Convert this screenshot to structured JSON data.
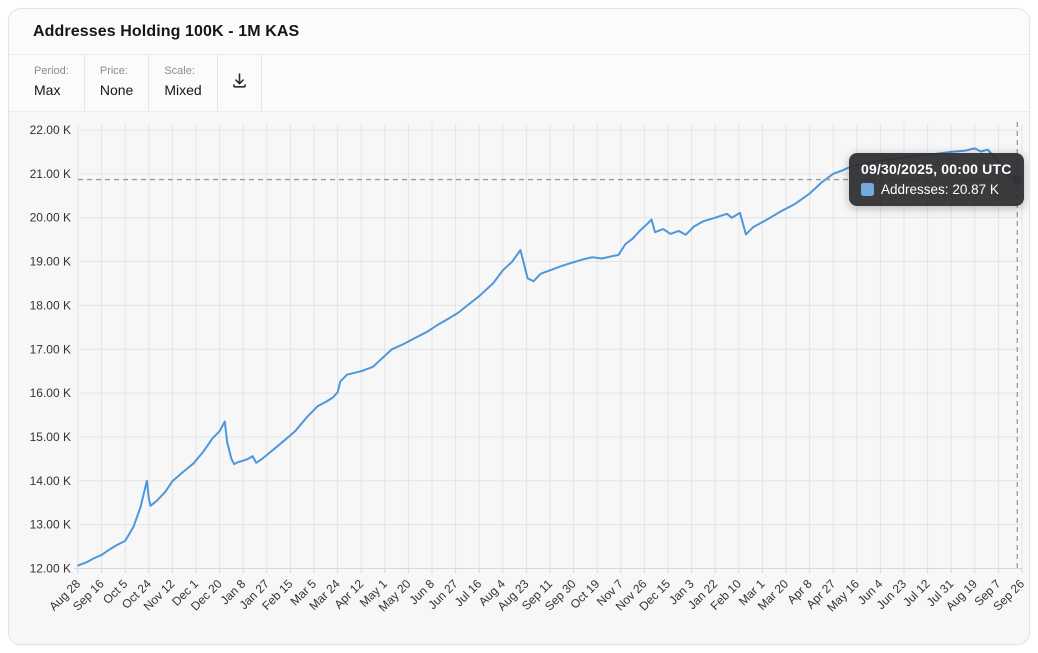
{
  "card": {
    "title": "Addresses Holding 100K - 1M KAS"
  },
  "toolbar": {
    "controls": [
      {
        "label": "Period:",
        "value": "Max"
      },
      {
        "label": "Price:",
        "value": "None"
      },
      {
        "label": "Scale:",
        "value": "Mixed"
      }
    ],
    "download_icon": "download-icon"
  },
  "tooltip": {
    "timestamp": "09/30/2025, 00:00 UTC",
    "series_label": "Addresses:",
    "series_value": "20.87 K",
    "swatch_color": "#73aadf"
  },
  "colors": {
    "line": "#4e97d9",
    "marker": "#3b8de0",
    "crosshair": "#9a9a9e",
    "grid": "#e4e4e7",
    "axis": "#d7d7da",
    "tick_text": "#333333",
    "plot_bg": "#f7f7f8"
  },
  "chart_data": {
    "type": "line",
    "title": "Addresses Holding 100K - 1M KAS",
    "xlabel": "",
    "ylabel": "Addresses",
    "grid": true,
    "legend_position": "none",
    "y_range": [
      12,
      22
    ],
    "y_ticks": [
      {
        "v": 22,
        "label": "22.00 K"
      },
      {
        "v": 21,
        "label": "21.00 K"
      },
      {
        "v": 20,
        "label": "20.00 K"
      },
      {
        "v": 19,
        "label": "19.00 K"
      },
      {
        "v": 18,
        "label": "18.00 K"
      },
      {
        "v": 17,
        "label": "17.00 K"
      },
      {
        "v": 16,
        "label": "16.00 K"
      },
      {
        "v": 15,
        "label": "15.00 K"
      },
      {
        "v": 14,
        "label": "14.00 K"
      },
      {
        "v": 13,
        "label": "13.00 K"
      },
      {
        "v": 12,
        "label": "12.00 K"
      }
    ],
    "x_ticks": [
      "Aug 28",
      "Sep 16",
      "Oct 5",
      "Oct 24",
      "Nov 12",
      "Dec 1",
      "Dec 20",
      "Jan 8",
      "Jan 27",
      "Feb 15",
      "Mar 5",
      "Mar 24",
      "Apr 12",
      "May 1",
      "May 20",
      "Jun 8",
      "Jun 27",
      "Jul 16",
      "Aug 4",
      "Aug 23",
      "Sep 11",
      "Sep 30",
      "Oct 19",
      "Nov 7",
      "Nov 26",
      "Dec 15",
      "Jan 3",
      "Jan 22",
      "Feb 10",
      "Mar 1",
      "Mar 20",
      "Apr 8",
      "Apr 27",
      "May 16",
      "Jun 4",
      "Jun 23",
      "Jul 12",
      "Jul 31",
      "Aug 19",
      "Sep 7",
      "Sep 26"
    ],
    "series": [
      {
        "name": "Addresses",
        "color": "#4e97d9",
        "points": [
          [
            0,
            12.07
          ],
          [
            0.35,
            12.14
          ],
          [
            0.7,
            12.24
          ],
          [
            1,
            12.31
          ],
          [
            1.35,
            12.44
          ],
          [
            1.7,
            12.55
          ],
          [
            2,
            12.63
          ],
          [
            2.35,
            12.95
          ],
          [
            2.65,
            13.4
          ],
          [
            2.92,
            14.0
          ],
          [
            3,
            13.6
          ],
          [
            3.07,
            13.43
          ],
          [
            3.35,
            13.55
          ],
          [
            3.7,
            13.75
          ],
          [
            4,
            13.99
          ],
          [
            4.45,
            14.2
          ],
          [
            4.9,
            14.4
          ],
          [
            5.3,
            14.66
          ],
          [
            5.7,
            14.97
          ],
          [
            6,
            15.13
          ],
          [
            6.22,
            15.35
          ],
          [
            6.32,
            14.88
          ],
          [
            6.5,
            14.5
          ],
          [
            6.62,
            14.38
          ],
          [
            6.8,
            14.43
          ],
          [
            6.95,
            14.45
          ],
          [
            7.2,
            14.5
          ],
          [
            7.4,
            14.56
          ],
          [
            7.55,
            14.41
          ],
          [
            7.8,
            14.5
          ],
          [
            8.3,
            14.72
          ],
          [
            8.7,
            14.9
          ],
          [
            9.2,
            15.13
          ],
          [
            9.7,
            15.45
          ],
          [
            10.15,
            15.7
          ],
          [
            10.5,
            15.8
          ],
          [
            10.8,
            15.9
          ],
          [
            11,
            16.02
          ],
          [
            11.12,
            16.27
          ],
          [
            11.4,
            16.42
          ],
          [
            12,
            16.5
          ],
          [
            12.5,
            16.6
          ],
          [
            13,
            16.85
          ],
          [
            13.3,
            17.0
          ],
          [
            13.8,
            17.12
          ],
          [
            14.3,
            17.26
          ],
          [
            14.8,
            17.4
          ],
          [
            15.25,
            17.56
          ],
          [
            15.7,
            17.7
          ],
          [
            16.1,
            17.83
          ],
          [
            16.5,
            18.0
          ],
          [
            17,
            18.21
          ],
          [
            17.6,
            18.51
          ],
          [
            18,
            18.8
          ],
          [
            18.4,
            19.0
          ],
          [
            18.75,
            19.26
          ],
          [
            19.05,
            18.62
          ],
          [
            19.3,
            18.55
          ],
          [
            19.6,
            18.72
          ],
          [
            20,
            18.8
          ],
          [
            20.5,
            18.9
          ],
          [
            20.9,
            18.97
          ],
          [
            21.4,
            19.05
          ],
          [
            21.8,
            19.1
          ],
          [
            22.2,
            19.07
          ],
          [
            22.6,
            19.12
          ],
          [
            22.9,
            19.15
          ],
          [
            23.2,
            19.4
          ],
          [
            23.5,
            19.52
          ],
          [
            23.8,
            19.7
          ],
          [
            24.1,
            19.85
          ],
          [
            24.3,
            19.96
          ],
          [
            24.45,
            19.67
          ],
          [
            24.8,
            19.74
          ],
          [
            25.1,
            19.63
          ],
          [
            25.45,
            19.7
          ],
          [
            25.75,
            19.61
          ],
          [
            26.1,
            19.8
          ],
          [
            26.5,
            19.92
          ],
          [
            27,
            20.0
          ],
          [
            27.5,
            20.09
          ],
          [
            27.7,
            20.0
          ],
          [
            28.05,
            20.11
          ],
          [
            28.3,
            19.62
          ],
          [
            28.6,
            19.78
          ],
          [
            29.2,
            19.96
          ],
          [
            29.8,
            20.15
          ],
          [
            30.4,
            20.32
          ],
          [
            31,
            20.55
          ],
          [
            31.5,
            20.8
          ],
          [
            32,
            21.0
          ],
          [
            32.4,
            21.08
          ],
          [
            32.8,
            21.18
          ],
          [
            33.4,
            21.24
          ],
          [
            34,
            21.3
          ],
          [
            34.6,
            21.34
          ],
          [
            35.2,
            21.39
          ],
          [
            35.8,
            21.43
          ],
          [
            36.4,
            21.46
          ],
          [
            37,
            21.5
          ],
          [
            37.6,
            21.53
          ],
          [
            38,
            21.58
          ],
          [
            38.25,
            21.51
          ],
          [
            38.55,
            21.55
          ],
          [
            39,
            21.28
          ],
          [
            39.35,
            21.0
          ],
          [
            39.6,
            20.9
          ],
          [
            39.8,
            20.87
          ]
        ]
      }
    ],
    "crosshair": {
      "x_index": 39.8,
      "value": 20.87
    },
    "end_marker": {
      "x_index": 39.8,
      "value": 20.87,
      "label": "20.87 K"
    }
  }
}
